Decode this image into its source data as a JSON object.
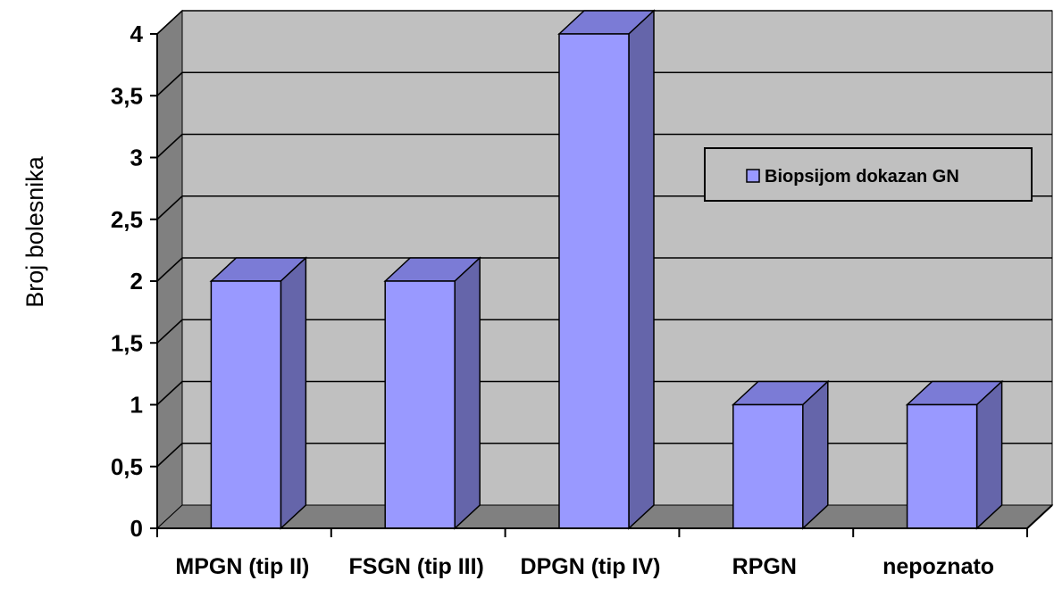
{
  "chart_data": {
    "type": "bar",
    "style": "3d-column",
    "categories": [
      "MPGN (tip II)",
      "FSGN (tip III)",
      "DPGN (tip IV)",
      "RPGN",
      "nepoznato"
    ],
    "series": [
      {
        "name": "Biopsijom dokazan GN",
        "values": [
          2,
          2,
          4,
          1,
          1
        ]
      }
    ],
    "yticks": [
      "0",
      "0,5",
      "1",
      "1,5",
      "2",
      "2,5",
      "3",
      "3,5",
      "4"
    ],
    "ytick_values": [
      0,
      0.5,
      1,
      1.5,
      2,
      2.5,
      3,
      3.5,
      4
    ],
    "ylabel": "Broj bolesnika",
    "xlabel": "",
    "title": "",
    "ylim": [
      0,
      4
    ],
    "grid": true,
    "legend_position": "right"
  },
  "colors": {
    "plot_background": "#c0c0c0",
    "side_wall": "#808080",
    "floor": "#808080",
    "grid": "#000000",
    "bar_front": "#9999ff",
    "bar_top": "#7b7bd6",
    "bar_side": "#6565aa"
  }
}
